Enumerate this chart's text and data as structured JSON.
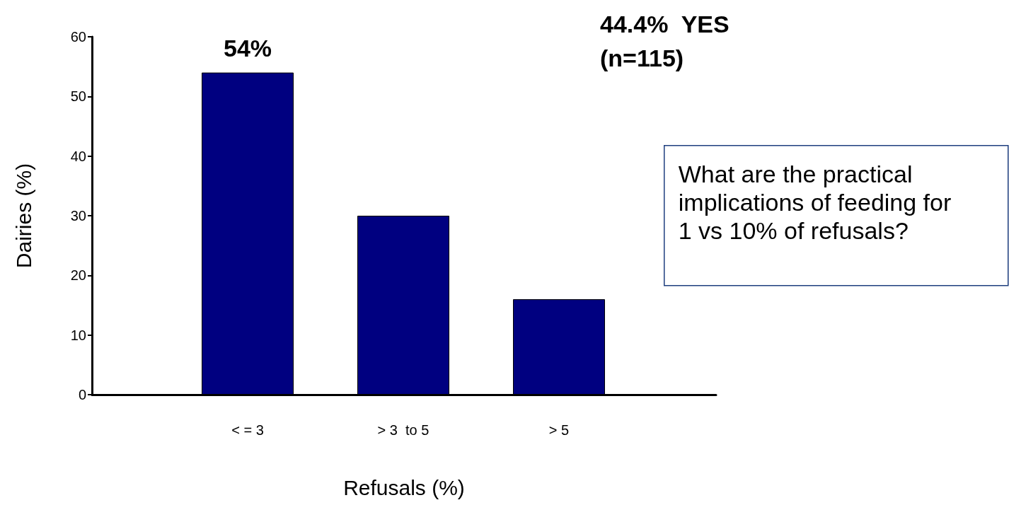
{
  "chart_data": {
    "type": "bar",
    "xlabel": "Refusals (%)",
    "ylabel": "Dairies (%)",
    "categories": [
      "< = 3",
      "> 3  to 5",
      "> 5"
    ],
    "values": [
      54,
      30,
      16
    ],
    "color": "#000080",
    "value_labels": [
      "54%",
      null,
      null
    ],
    "ylim": [
      0,
      60
    ],
    "yticks": [
      0,
      10,
      20,
      30,
      40,
      50,
      60
    ],
    "grid": false,
    "annotations": [
      "44.4%  YES\n(n=115)",
      "What are the practical implications of feeding for 1 vs 10% of refusals?"
    ]
  }
}
